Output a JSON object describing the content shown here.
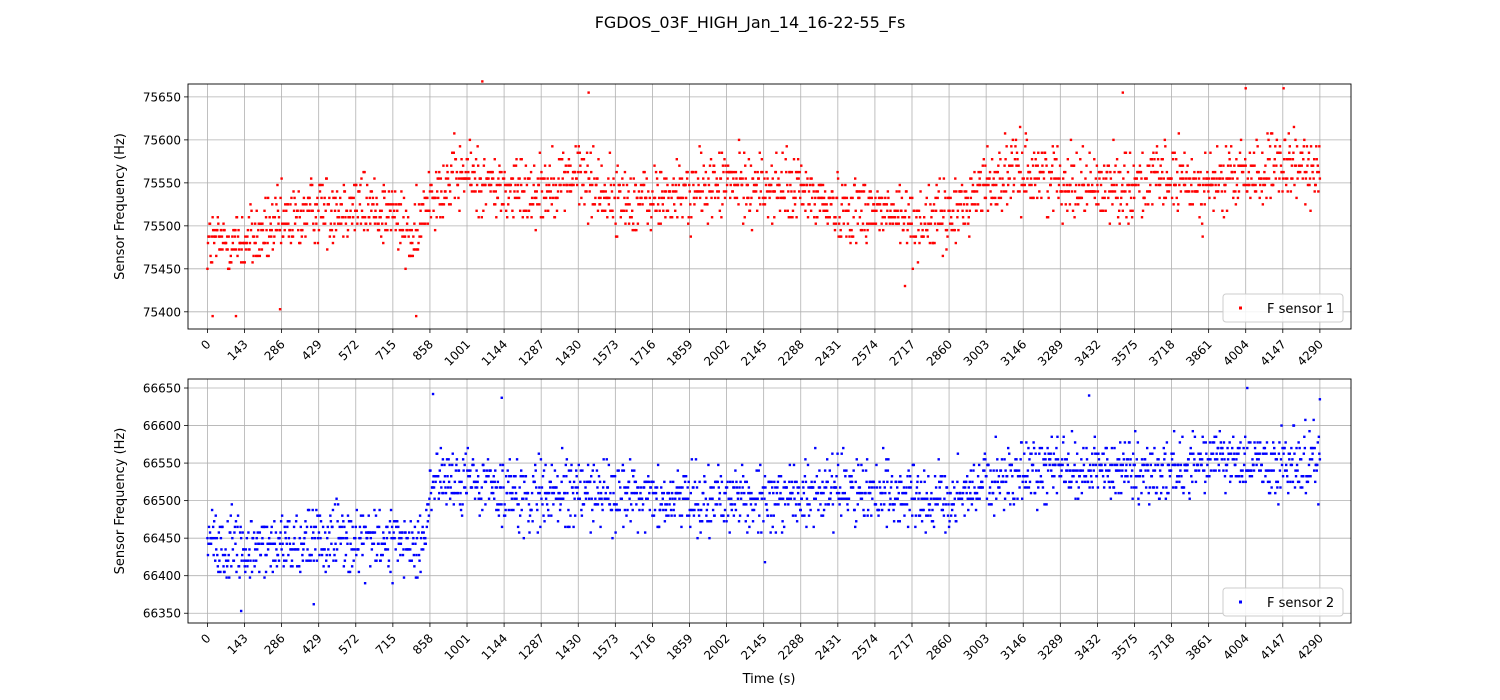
{
  "figure": {
    "title": "FGDOS_03F_HIGH_Jan_14_16-22-55_Fs",
    "shared_xlabel": "Time (s)"
  },
  "chart_data": [
    {
      "type": "scatter",
      "title": "",
      "xlabel": "",
      "ylabel": "Sensor Frequency (Hz)",
      "xlim": [
        -75,
        4410
      ],
      "ylim": [
        75380,
        75665
      ],
      "grid": true,
      "legend_position": "bottom-right",
      "xticks": [
        0,
        143,
        286,
        429,
        572,
        715,
        858,
        1001,
        1144,
        1287,
        1430,
        1573,
        1716,
        1859,
        2002,
        2145,
        2288,
        2431,
        2574,
        2717,
        2860,
        3003,
        3146,
        3289,
        3432,
        3575,
        3718,
        3861,
        4004,
        4147,
        4290
      ],
      "yticks": [
        75400,
        75450,
        75500,
        75550,
        75600,
        75650
      ],
      "series": [
        {
          "name": "F sensor 1",
          "color": "#ff0000",
          "marker": "square",
          "x_range": [
            0,
            4290
          ],
          "sample_interval_s": 2,
          "quantization_hz": 7.5,
          "trend": [
            {
              "x": 0,
              "y": 75480
            },
            {
              "x": 143,
              "y": 75482
            },
            {
              "x": 286,
              "y": 75500
            },
            {
              "x": 429,
              "y": 75520
            },
            {
              "x": 572,
              "y": 75525
            },
            {
              "x": 715,
              "y": 75515
            },
            {
              "x": 800,
              "y": 75480
            },
            {
              "x": 858,
              "y": 75540
            },
            {
              "x": 1001,
              "y": 75560
            },
            {
              "x": 1144,
              "y": 75540
            },
            {
              "x": 1287,
              "y": 75545
            },
            {
              "x": 1430,
              "y": 75560
            },
            {
              "x": 1573,
              "y": 75530
            },
            {
              "x": 1716,
              "y": 75530
            },
            {
              "x": 1859,
              "y": 75540
            },
            {
              "x": 2002,
              "y": 75550
            },
            {
              "x": 2145,
              "y": 75545
            },
            {
              "x": 2288,
              "y": 75540
            },
            {
              "x": 2431,
              "y": 75520
            },
            {
              "x": 2574,
              "y": 75520
            },
            {
              "x": 2717,
              "y": 75505
            },
            {
              "x": 2860,
              "y": 75510
            },
            {
              "x": 3003,
              "y": 75550
            },
            {
              "x": 3146,
              "y": 75565
            },
            {
              "x": 3289,
              "y": 75555
            },
            {
              "x": 3432,
              "y": 75545
            },
            {
              "x": 3575,
              "y": 75550
            },
            {
              "x": 3718,
              "y": 75555
            },
            {
              "x": 3861,
              "y": 75545
            },
            {
              "x": 4004,
              "y": 75560
            },
            {
              "x": 4147,
              "y": 75565
            },
            {
              "x": 4290,
              "y": 75570
            }
          ],
          "spread_hz": 28,
          "extremes": [
            {
              "x": 20,
              "y": 75395
            },
            {
              "x": 110,
              "y": 75395
            },
            {
              "x": 280,
              "y": 75403
            },
            {
              "x": 805,
              "y": 75395
            },
            {
              "x": 1060,
              "y": 75668
            },
            {
              "x": 1470,
              "y": 75655
            },
            {
              "x": 2690,
              "y": 75430
            },
            {
              "x": 3530,
              "y": 75655
            },
            {
              "x": 4004,
              "y": 75660
            },
            {
              "x": 4150,
              "y": 75660
            }
          ]
        }
      ]
    },
    {
      "type": "scatter",
      "title": "",
      "xlabel": "Time (s)",
      "ylabel": "Sensor Frequency (Hz)",
      "xlim": [
        -75,
        4410
      ],
      "ylim": [
        66337,
        66662
      ],
      "grid": true,
      "legend_position": "bottom-right",
      "xticks": [
        0,
        143,
        286,
        429,
        572,
        715,
        858,
        1001,
        1144,
        1287,
        1430,
        1573,
        1716,
        1859,
        2002,
        2145,
        2288,
        2431,
        2574,
        2717,
        2860,
        3003,
        3146,
        3289,
        3432,
        3575,
        3718,
        3861,
        4004,
        4147,
        4290
      ],
      "yticks": [
        66350,
        66400,
        66450,
        66500,
        66550,
        66600,
        66650
      ],
      "series": [
        {
          "name": "F sensor 2",
          "color": "#0000ff",
          "marker": "square",
          "x_range": [
            0,
            4290
          ],
          "sample_interval_s": 2,
          "quantization_hz": 7.5,
          "trend": [
            {
              "x": 0,
              "y": 66440
            },
            {
              "x": 143,
              "y": 66435
            },
            {
              "x": 286,
              "y": 66445
            },
            {
              "x": 429,
              "y": 66445
            },
            {
              "x": 572,
              "y": 66450
            },
            {
              "x": 715,
              "y": 66440
            },
            {
              "x": 840,
              "y": 66440
            },
            {
              "x": 858,
              "y": 66520
            },
            {
              "x": 1001,
              "y": 66530
            },
            {
              "x": 1144,
              "y": 66510
            },
            {
              "x": 1287,
              "y": 66505
            },
            {
              "x": 1430,
              "y": 66515
            },
            {
              "x": 1573,
              "y": 66510
            },
            {
              "x": 1716,
              "y": 66505
            },
            {
              "x": 1859,
              "y": 66505
            },
            {
              "x": 2002,
              "y": 66505
            },
            {
              "x": 2145,
              "y": 66500
            },
            {
              "x": 2288,
              "y": 66510
            },
            {
              "x": 2431,
              "y": 66515
            },
            {
              "x": 2574,
              "y": 66510
            },
            {
              "x": 2717,
              "y": 66505
            },
            {
              "x": 2860,
              "y": 66500
            },
            {
              "x": 3003,
              "y": 66520
            },
            {
              "x": 3146,
              "y": 66540
            },
            {
              "x": 3289,
              "y": 66545
            },
            {
              "x": 3432,
              "y": 66545
            },
            {
              "x": 3575,
              "y": 66545
            },
            {
              "x": 3718,
              "y": 66545
            },
            {
              "x": 3861,
              "y": 66550
            },
            {
              "x": 4004,
              "y": 66555
            },
            {
              "x": 4147,
              "y": 66545
            },
            {
              "x": 4290,
              "y": 66550
            }
          ],
          "spread_hz": 30,
          "extremes": [
            {
              "x": 130,
              "y": 66353
            },
            {
              "x": 410,
              "y": 66362
            },
            {
              "x": 870,
              "y": 66642
            },
            {
              "x": 1135,
              "y": 66637
            },
            {
              "x": 2150,
              "y": 66418
            },
            {
              "x": 3400,
              "y": 66640
            },
            {
              "x": 4010,
              "y": 66650
            },
            {
              "x": 4290,
              "y": 66635
            }
          ]
        }
      ]
    }
  ]
}
